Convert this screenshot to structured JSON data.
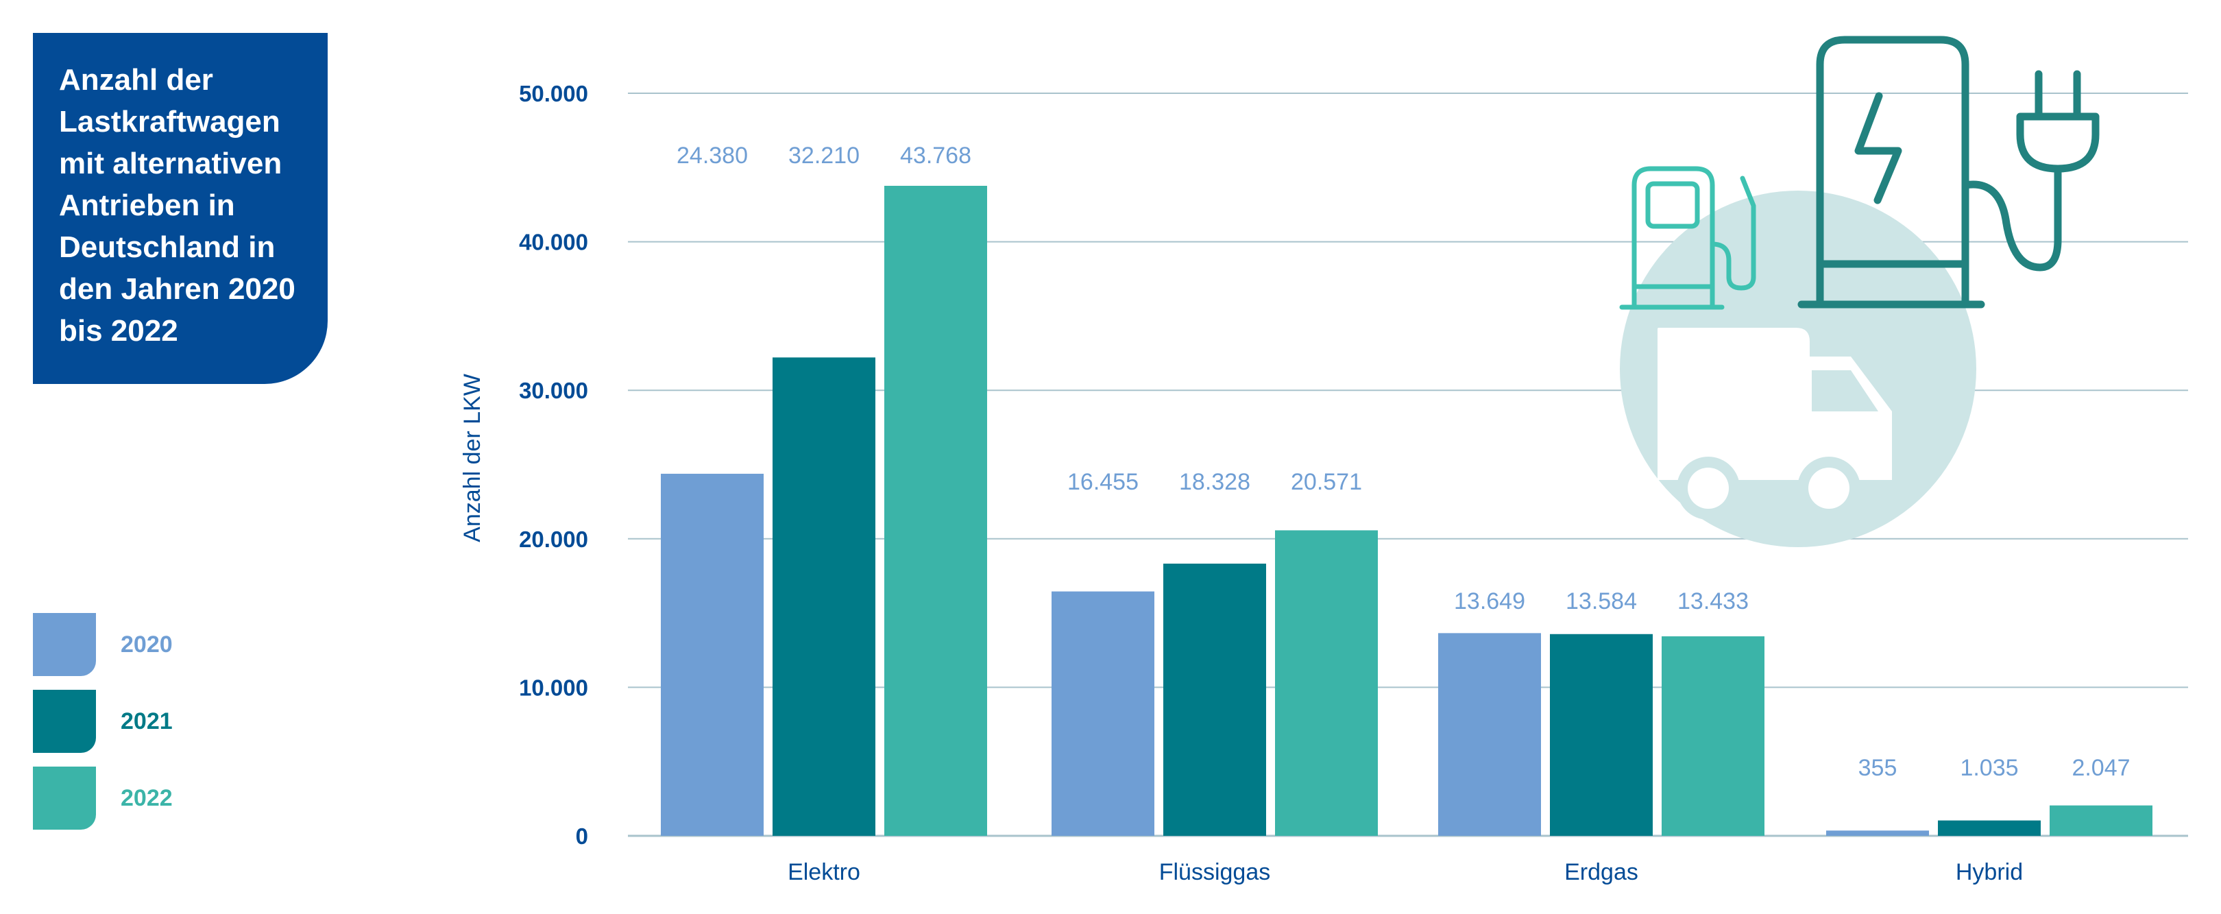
{
  "title": "Anzahl der Lastkraftwagen mit alternativen Antrieben in Deutschland in den Jahren 2020 bis 2022",
  "colors": {
    "2020": "#6f9ed4",
    "2021": "#007a87",
    "2022": "#3bb4a8",
    "axis_text": "#034b96",
    "title_bg": "#034b96",
    "value_label": "#6f9ed4",
    "grid": "#a9c3cc",
    "icon_circle": "#cde5e6",
    "icon_dark": "#22827f",
    "icon_light": "#3ec2b1"
  },
  "legend": [
    {
      "label": "2020",
      "color": "#6f9ed4"
    },
    {
      "label": "2021",
      "color": "#007a87"
    },
    {
      "label": "2022",
      "color": "#3bb4a8"
    }
  ],
  "chart_data": {
    "type": "bar",
    "title": "Anzahl der Lastkraftwagen mit alternativen Antrieben in Deutschland in den Jahren 2020 bis 2022",
    "xlabel": "",
    "ylabel": "Anzahl der LKW",
    "ylim": [
      0,
      50000
    ],
    "yticks": [
      0,
      10000,
      20000,
      30000,
      40000,
      50000
    ],
    "ytick_labels": [
      "0",
      "10.000",
      "20.000",
      "30.000",
      "40.000",
      "50.000"
    ],
    "categories": [
      "Elektro",
      "Flüssiggas",
      "Erdgas",
      "Hybrid"
    ],
    "series": [
      {
        "name": "2020",
        "values": [
          24380,
          16455,
          13649,
          355
        ],
        "labels": [
          "24.380",
          "16.455",
          "13.649",
          "355"
        ]
      },
      {
        "name": "2021",
        "values": [
          32210,
          18328,
          13584,
          1035
        ],
        "labels": [
          "32.210",
          "18.328",
          "13.584",
          "1.035"
        ]
      },
      {
        "name": "2022",
        "values": [
          43768,
          20571,
          13433,
          2047
        ],
        "labels": [
          "43.768",
          "20.571",
          "13.433",
          "2.047"
        ]
      }
    ],
    "grid": true,
    "legend_position": "left"
  }
}
